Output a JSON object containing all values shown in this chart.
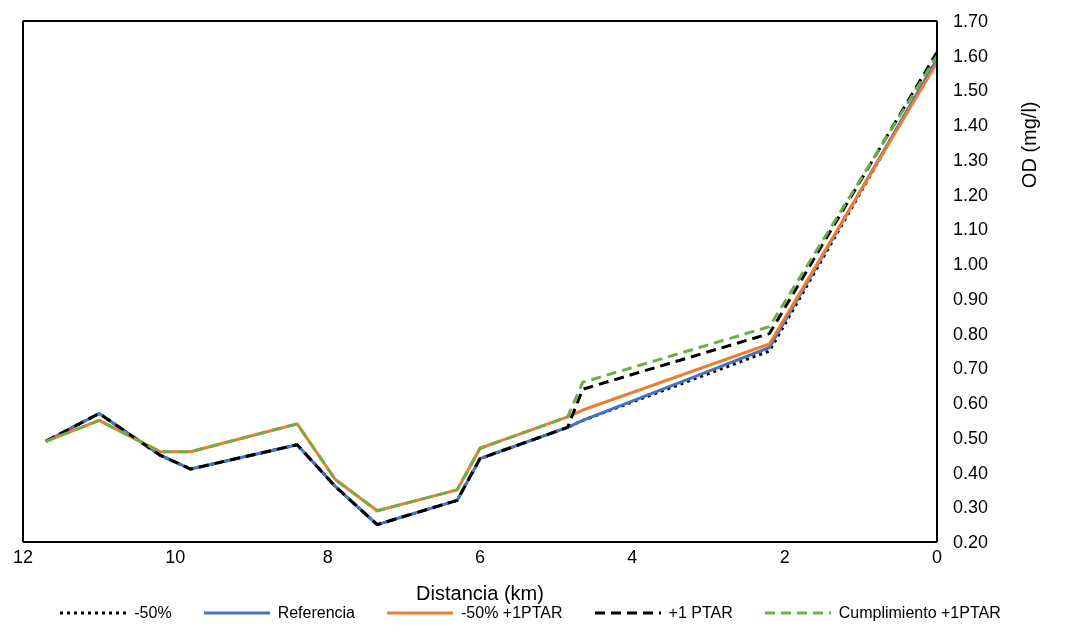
{
  "chart_data": {
    "type": "line",
    "xlabel": "Distancia (km)",
    "ylabel": "OD (mg/l)",
    "x": [
      11.7,
      11.0,
      10.2,
      9.8,
      8.4,
      7.9,
      7.35,
      6.3,
      6.0,
      4.85,
      4.65,
      2.2,
      0
    ],
    "series": [
      {
        "name": "-50%",
        "color": "#000000",
        "line_style": "dotted",
        "values": [
          0.49,
          0.57,
          0.45,
          0.41,
          0.48,
          0.36,
          0.25,
          0.32,
          0.44,
          0.53,
          0.55,
          0.75,
          1.59
        ]
      },
      {
        "name": "Referencia",
        "color": "#4472c4",
        "line_style": "solid",
        "values": [
          0.49,
          0.57,
          0.45,
          0.41,
          0.48,
          0.36,
          0.25,
          0.32,
          0.44,
          0.53,
          0.55,
          0.76,
          1.59
        ]
      },
      {
        "name": "-50% +1PTAR",
        "color": "#ed7d31",
        "line_style": "solid",
        "values": [
          0.49,
          0.55,
          0.46,
          0.46,
          0.54,
          0.38,
          0.29,
          0.35,
          0.47,
          0.56,
          0.58,
          0.77,
          1.58
        ]
      },
      {
        "name": "+1 PTAR",
        "color": "#000000",
        "line_style": "dashed",
        "values": [
          0.49,
          0.57,
          0.45,
          0.41,
          0.48,
          0.36,
          0.25,
          0.32,
          0.44,
          0.53,
          0.64,
          0.8,
          1.61
        ]
      },
      {
        "name": "Cumplimiento +1PTAR",
        "color": "#70ad47",
        "line_style": "dashed",
        "values": [
          0.49,
          0.55,
          0.46,
          0.46,
          0.54,
          0.38,
          0.29,
          0.35,
          0.47,
          0.56,
          0.66,
          0.82,
          1.6
        ]
      }
    ],
    "xlim": [
      12,
      0
    ],
    "xticks": [
      12,
      10,
      8,
      6,
      4,
      2,
      0
    ],
    "ylim": [
      0.2,
      1.7
    ],
    "yticks": [
      {
        "value": 0.2,
        "label": "0.20"
      },
      {
        "value": 0.3,
        "label": "0.30"
      },
      {
        "value": 0.4,
        "label": "0.40"
      },
      {
        "value": 0.5,
        "label": "0.50"
      },
      {
        "value": 0.6,
        "label": "0.60"
      },
      {
        "value": 0.7,
        "label": "0.70"
      },
      {
        "value": 0.8,
        "label": "0.80"
      },
      {
        "value": 0.9,
        "label": "0.90"
      },
      {
        "value": 1.0,
        "label": "1.00"
      },
      {
        "value": 1.1,
        "label": "1.10"
      },
      {
        "value": 1.2,
        "label": "1.20"
      },
      {
        "value": 1.3,
        "label": "1.30"
      },
      {
        "value": 1.4,
        "label": "1.40"
      },
      {
        "value": 1.5,
        "label": "1.50"
      },
      {
        "value": 1.6,
        "label": "1.60"
      },
      {
        "value": 1.7,
        "label": "1.70"
      }
    ],
    "grid": false,
    "legend": "bottom",
    "marker": "none"
  }
}
